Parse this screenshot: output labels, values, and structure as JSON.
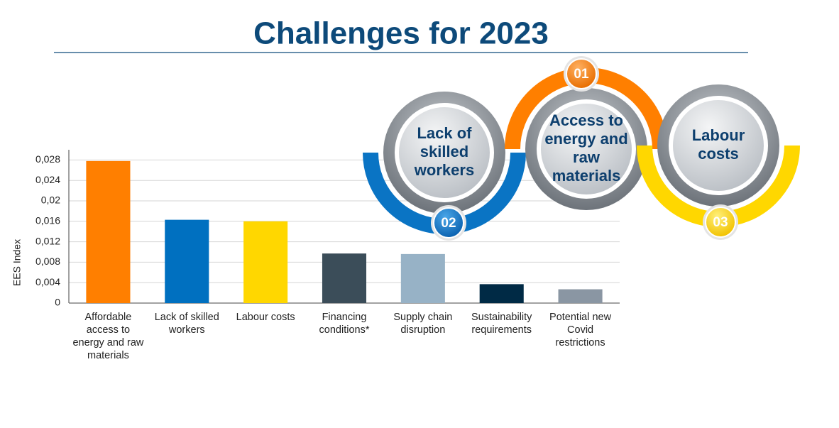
{
  "chart_data": {
    "type": "bar",
    "title": "Challenges for 2023",
    "y_label": "EES Index",
    "categories": [
      "Affordable access to energy and raw materials",
      "Lack of skilled workers",
      "Labour costs",
      "Financing conditions*",
      "Supply chain disruption",
      "Sustainability requirements",
      "Potential new Covid restrictions"
    ],
    "values": [
      0.0278,
      0.0163,
      0.016,
      0.0097,
      0.0096,
      0.0037,
      0.0027
    ],
    "colors": [
      "#ff7f00",
      "#0070c0",
      "#ffd700",
      "#3b4d59",
      "#97b2c6",
      "#002a45",
      "#8a96a3"
    ],
    "ylim": [
      0,
      0.03
    ],
    "yticks": [
      0,
      {
        "value": 0.004,
        "label": "0,004"
      },
      {
        "value": 0.008,
        "label": "0,008"
      },
      {
        "value": 0.012,
        "label": "0,012"
      },
      {
        "value": 0.016,
        "label": "0,016"
      },
      {
        "value": 0.02,
        "label": "0,02"
      },
      {
        "value": 0.024,
        "label": "0,024"
      },
      {
        "value": 0.028,
        "label": "0,028"
      }
    ],
    "grid": true
  },
  "infographic": {
    "items": [
      {
        "number": "02",
        "lines": [
          "Lack of",
          "skilled",
          "workers"
        ]
      },
      {
        "number": "01",
        "lines": [
          "Access to",
          "energy and",
          "raw",
          "materials"
        ]
      },
      {
        "number": "03",
        "lines": [
          "Labour",
          "costs"
        ]
      }
    ]
  }
}
